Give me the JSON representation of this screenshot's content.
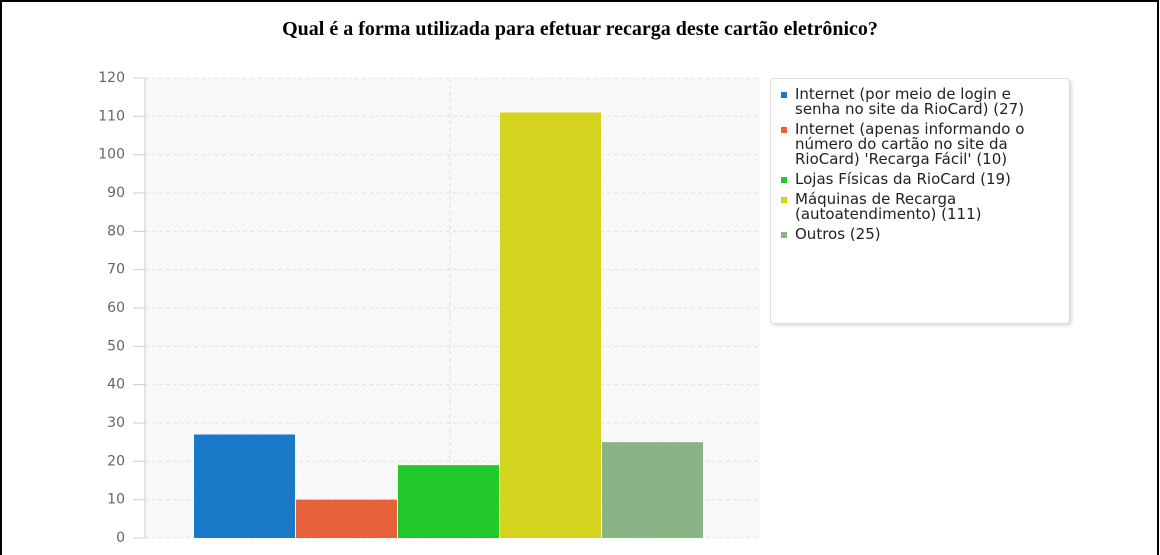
{
  "chart_data": {
    "type": "bar",
    "title": "Qual é a forma utilizada para efetuar recarga deste cartão eletrônico?",
    "categories": [
      "Internet (por meio de login e senha no site da RioCard) (27)",
      "Internet (apenas informando o número do cartão no site da RioCard) 'Recarga Fácil' (10)",
      "Lojas Físicas da RioCard (19)",
      "Máquinas de Recarga (autoatendimento) (111)",
      "Outros (25)"
    ],
    "values": [
      27,
      10,
      19,
      111,
      25
    ],
    "colors": [
      "#1a7ac8",
      "#e8613a",
      "#22c92a",
      "#d4d41e",
      "#8ab486"
    ],
    "ylim": [
      0,
      120
    ],
    "yticks": [
      0,
      10,
      20,
      30,
      40,
      50,
      60,
      70,
      80,
      90,
      100,
      110,
      120
    ],
    "grid": true,
    "legend": "right"
  }
}
